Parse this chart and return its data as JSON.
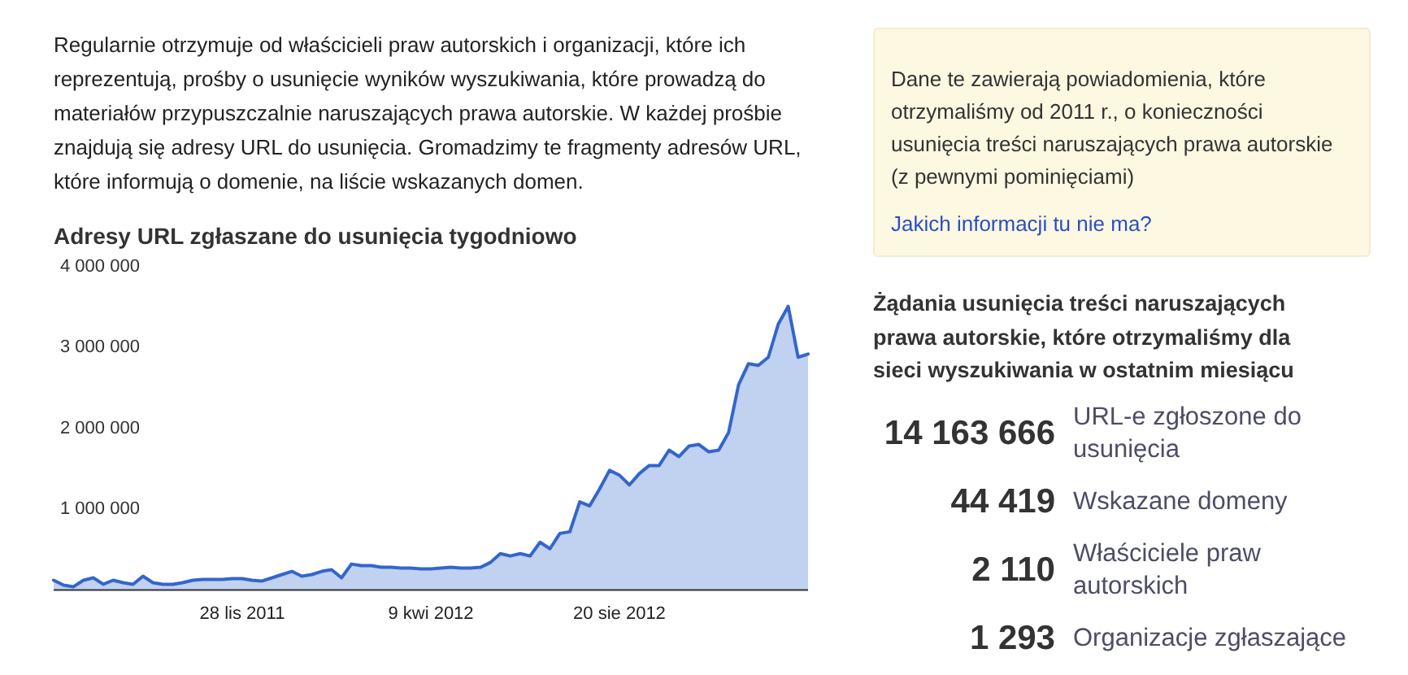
{
  "chart_data": [
    {
      "type": "area",
      "title": "Adresy URL zgłaszane do usunięcia tygodniowo",
      "annotations": [
        "Regularnie otrzymuje od właścicieli praw autorskich i organizacji, które ich reprezentują, prośby o usunięcie wyników wyszukiwania, które prowadzą do materiałów przypuszczalnie naruszających prawa autorskie. W każdej prośbie znajdują się adresy URL do usunięcia. Gromadzimy te fragmenty adresów URL, które informują o domenie, na liście wskazanych domen."
      ],
      "x": [
        "2011-07-18",
        "2011-07-25",
        "2011-08-01",
        "2011-08-08",
        "2011-08-15",
        "2011-08-22",
        "2011-08-29",
        "2011-09-05",
        "2011-09-12",
        "2011-09-19",
        "2011-09-26",
        "2011-10-03",
        "2011-10-10",
        "2011-10-17",
        "2011-10-24",
        "2011-10-31",
        "2011-11-07",
        "2011-11-14",
        "2011-11-21",
        "2011-11-28",
        "2011-12-05",
        "2011-12-12",
        "2011-12-19",
        "2011-12-26",
        "2012-01-02",
        "2012-01-09",
        "2012-01-16",
        "2012-01-23",
        "2012-01-30",
        "2012-02-06",
        "2012-02-13",
        "2012-02-20",
        "2012-02-27",
        "2012-03-05",
        "2012-03-12",
        "2012-03-19",
        "2012-03-26",
        "2012-04-02",
        "2012-04-09",
        "2012-04-16",
        "2012-04-23",
        "2012-04-30",
        "2012-05-07",
        "2012-05-14",
        "2012-05-21",
        "2012-05-28",
        "2012-06-04",
        "2012-06-11",
        "2012-06-18",
        "2012-06-25",
        "2012-07-02",
        "2012-07-09",
        "2012-07-16",
        "2012-07-23",
        "2012-07-30",
        "2012-08-06",
        "2012-08-13",
        "2012-08-20",
        "2012-08-27",
        "2012-09-03",
        "2012-09-10",
        "2012-09-17",
        "2012-09-24",
        "2012-10-01",
        "2012-10-08",
        "2012-10-15",
        "2012-10-22",
        "2012-10-29",
        "2012-11-05",
        "2012-11-12",
        "2012-11-19",
        "2012-11-26",
        "2012-12-03",
        "2012-12-10",
        "2012-12-17",
        "2012-12-24",
        "2012-12-31"
      ],
      "values": [
        120000,
        60000,
        40000,
        120000,
        150000,
        70000,
        120000,
        90000,
        70000,
        170000,
        90000,
        70000,
        70000,
        90000,
        120000,
        130000,
        130000,
        130000,
        140000,
        140000,
        120000,
        110000,
        150000,
        190000,
        230000,
        170000,
        190000,
        230000,
        250000,
        150000,
        320000,
        300000,
        300000,
        280000,
        280000,
        270000,
        270000,
        260000,
        260000,
        270000,
        280000,
        270000,
        270000,
        280000,
        340000,
        450000,
        420000,
        450000,
        420000,
        590000,
        510000,
        700000,
        720000,
        1090000,
        1040000,
        1250000,
        1480000,
        1420000,
        1300000,
        1440000,
        1540000,
        1540000,
        1730000,
        1650000,
        1780000,
        1800000,
        1710000,
        1730000,
        1950000,
        2540000,
        2800000,
        2780000,
        2880000,
        3290000,
        3510000,
        2880000,
        2920000
      ],
      "color": "#3366cc",
      "xlim": [
        "2011-07-18",
        "2012-12-31"
      ],
      "xticks": [
        {
          "value": "2011-11-28",
          "label": "28 lis 2011"
        },
        {
          "value": "2012-04-09",
          "label": "9 kwi 2012"
        },
        {
          "value": "2012-08-20",
          "label": "20 sie 2012"
        }
      ],
      "ylim": [
        0,
        4000000
      ],
      "yticks": [
        {
          "value": 1000000,
          "label": "1 000 000"
        },
        {
          "value": 2000000,
          "label": "2 000 000"
        },
        {
          "value": 3000000,
          "label": "3 000 000"
        },
        {
          "value": 4000000,
          "label": "4 000 000"
        }
      ]
    },
    {
      "type": "other",
      "annotations": [
        "Dane te zawierają powiadomienia, które otrzymaliśmy od 2011 r., o konieczności usunięcia treści naruszających prawa autorskie (z pewnymi pominięciami)",
        "Jakich informacji tu nie ma?"
      ],
      "title": "Żądania usunięcia treści naruszających prawa autorskie, które otrzymaliśmy dla sieci wyszukiwania w ostatnim miesiącu",
      "categories": [
        "URL-e zgłoszone do usunięcia",
        "Wskazane domeny",
        "Właściciele praw autorskich",
        "Organizacje zgłaszające"
      ],
      "values": [
        14163666,
        44419,
        2110,
        1293
      ],
      "value_labels": [
        "14 163 666",
        "44 419",
        "2 110",
        "1 293"
      ]
    }
  ]
}
